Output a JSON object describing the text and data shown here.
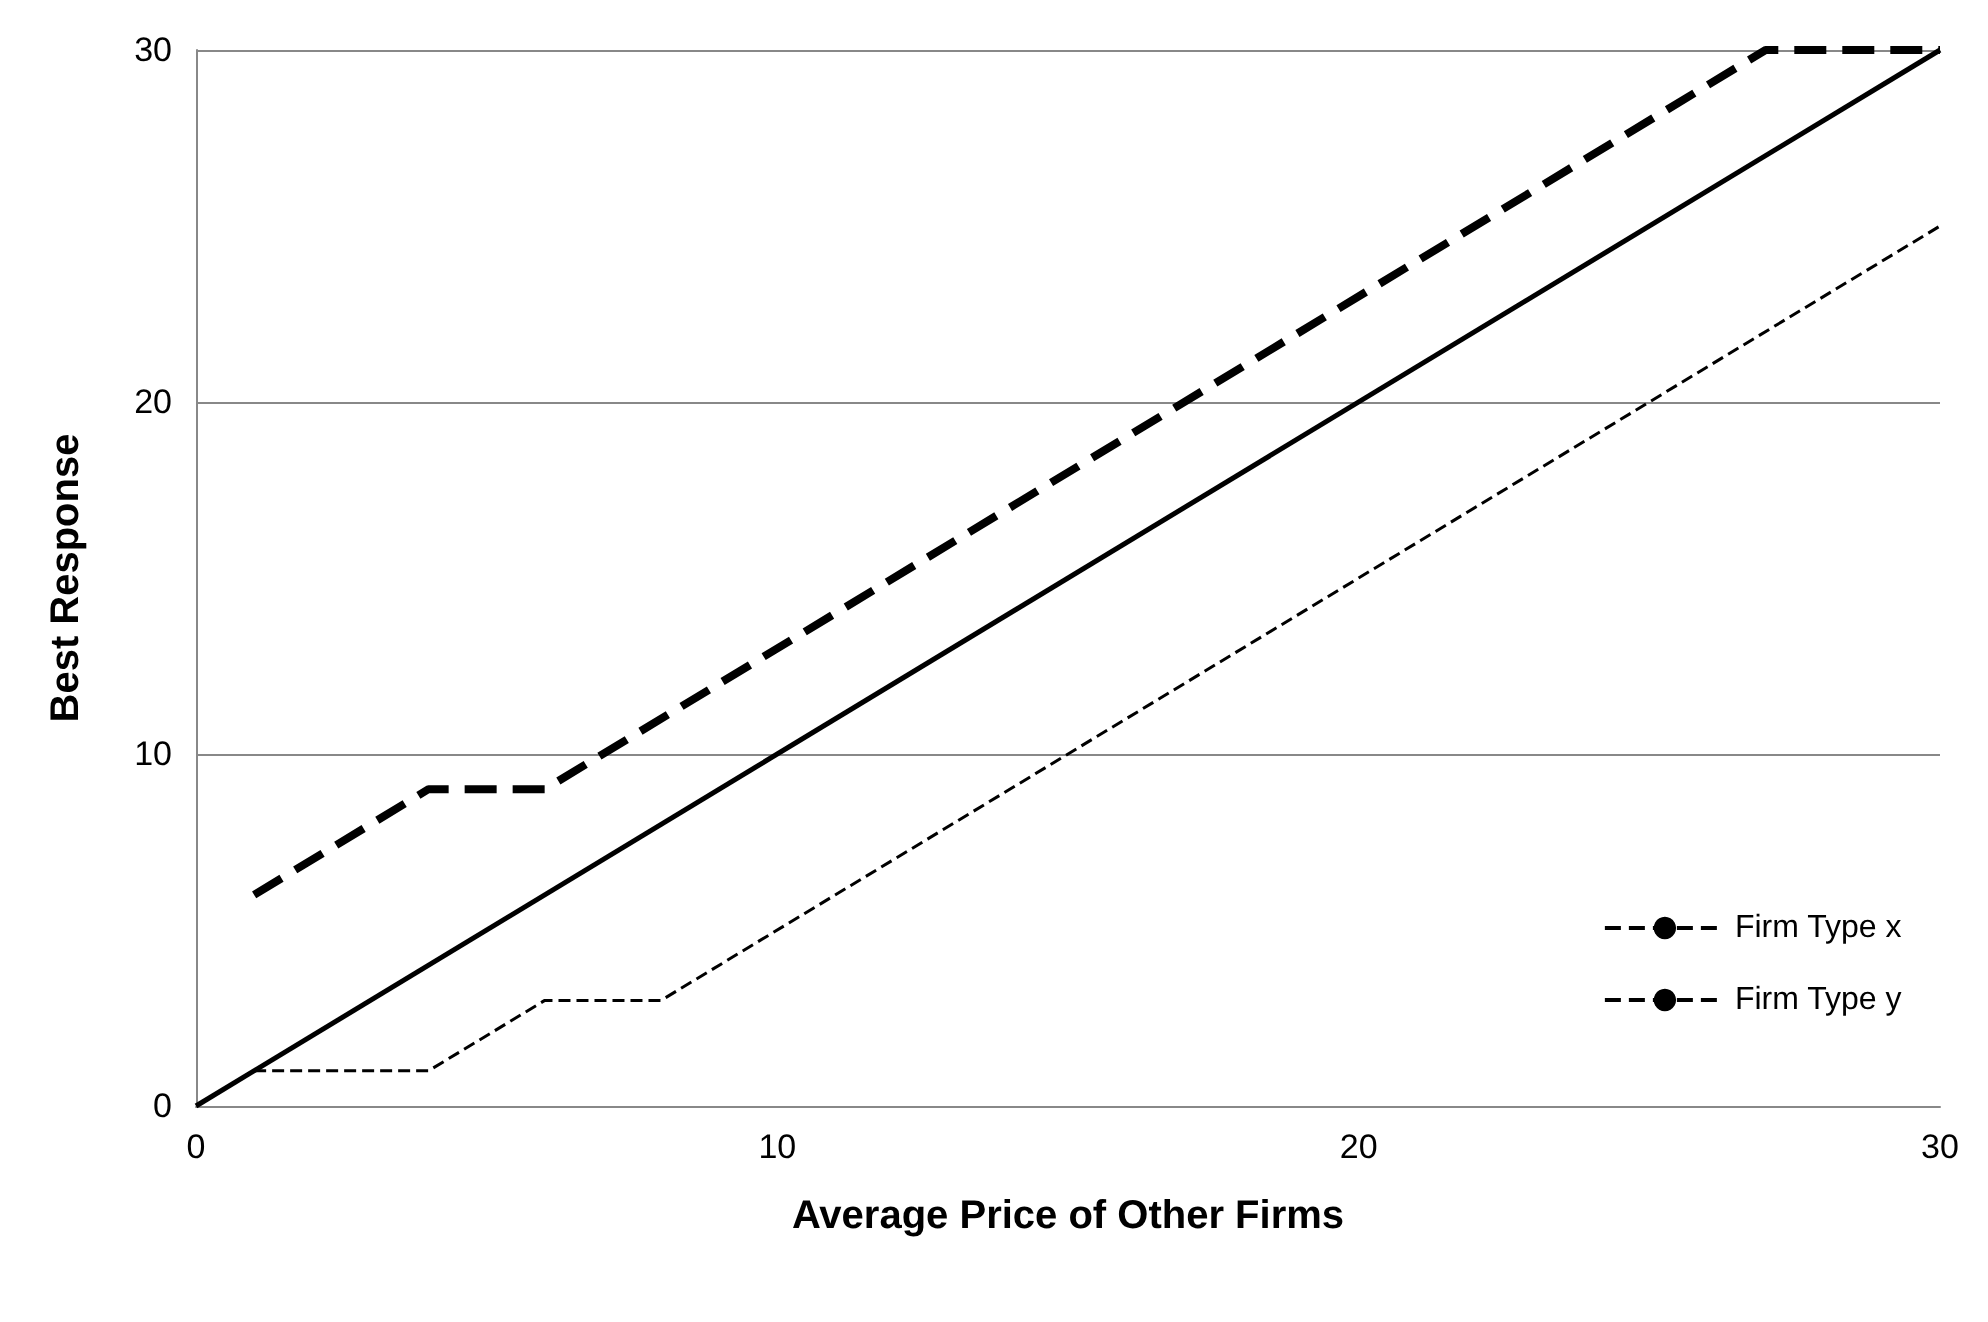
{
  "chart_data": {
    "type": "line",
    "xlabel": "Average Price of Other Firms",
    "ylabel": "Best Response",
    "xlim": [
      0,
      30
    ],
    "xticks": [
      0,
      10,
      20,
      30
    ],
    "ylim": [
      0,
      30
    ],
    "yticks": [
      0,
      10,
      20,
      30
    ],
    "grid": "y",
    "legend": "bottom right",
    "marker": "none",
    "series": [
      {
        "name": "Firm Type x",
        "color": "#000000",
        "line_style": "dashed",
        "x": [
          1,
          4,
          6,
          8,
          30
        ],
        "values": [
          1,
          1,
          3,
          3,
          25
        ]
      },
      {
        "name": "Firm Type y",
        "color": "#000000",
        "line_style": "dashed",
        "x": [
          1,
          4,
          6,
          27,
          30
        ],
        "values": [
          6,
          9,
          9,
          30,
          30
        ]
      },
      {
        "color": "#000000",
        "line_style": "solid",
        "x": [
          0,
          30
        ],
        "values": [
          0,
          30
        ]
      }
    ]
  }
}
